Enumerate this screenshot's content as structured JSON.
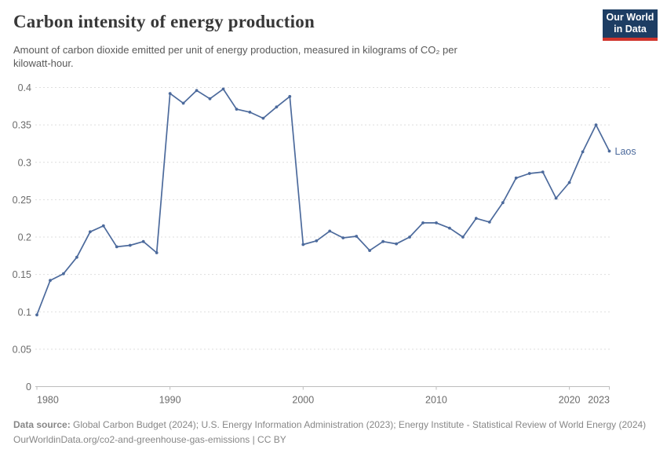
{
  "header": {
    "title": "Carbon intensity of energy production",
    "subtitle_line1": "Amount of carbon dioxide emitted per unit of energy production, measured in kilograms of CO₂ per",
    "subtitle_line2": "kilowatt-hour.",
    "logo": {
      "line1": "Our World",
      "line2": "in Data",
      "bg_color": "#1d3d63",
      "bar_color": "#d0342c"
    }
  },
  "chart_data": {
    "type": "line",
    "title": "Carbon intensity of energy production",
    "subtitle": "Amount of carbon dioxide emitted per unit of energy production, measured in kilograms of CO₂ per kilowatt-hour.",
    "series_label": "Laos",
    "line_color": "#4c6a9c",
    "grid": "horizontal dashed gridlines",
    "legend_position": "label at end of line",
    "xlim": [
      1980,
      2023
    ],
    "ylim": [
      0,
      0.4
    ],
    "xticks": [
      1980,
      1990,
      2000,
      2010,
      2020,
      2023
    ],
    "yticks": [
      0,
      0.05,
      0.1,
      0.15,
      0.2,
      0.25,
      0.3,
      0.35,
      0.4
    ],
    "x": [
      1980,
      1981,
      1982,
      1983,
      1984,
      1985,
      1986,
      1987,
      1988,
      1989,
      1990,
      1991,
      1992,
      1993,
      1994,
      1995,
      1996,
      1997,
      1998,
      1999,
      2000,
      2001,
      2002,
      2003,
      2004,
      2005,
      2006,
      2007,
      2008,
      2009,
      2010,
      2011,
      2012,
      2013,
      2014,
      2015,
      2016,
      2017,
      2018,
      2019,
      2020,
      2021,
      2022,
      2023
    ],
    "values": [
      0.096,
      0.142,
      0.151,
      0.173,
      0.207,
      0.215,
      0.187,
      0.189,
      0.194,
      0.179,
      0.392,
      0.379,
      0.396,
      0.385,
      0.398,
      0.371,
      0.367,
      0.359,
      0.374,
      0.388,
      0.19,
      0.195,
      0.208,
      0.199,
      0.201,
      0.182,
      0.194,
      0.191,
      0.2,
      0.219,
      0.219,
      0.212,
      0.2,
      0.225,
      0.22,
      0.246,
      0.279,
      0.285,
      0.287,
      0.252,
      0.273,
      0.314,
      0.35,
      0.315
    ]
  },
  "footer": {
    "datasource_label": "Data source:",
    "datasource_text": " Global Carbon Budget (2024); U.S. Energy Information Administration (2023); Energy Institute - Statistical Review of World Energy (2024)",
    "url_line": "OurWorldinData.org/co2-and-greenhouse-gas-emissions | CC BY"
  }
}
